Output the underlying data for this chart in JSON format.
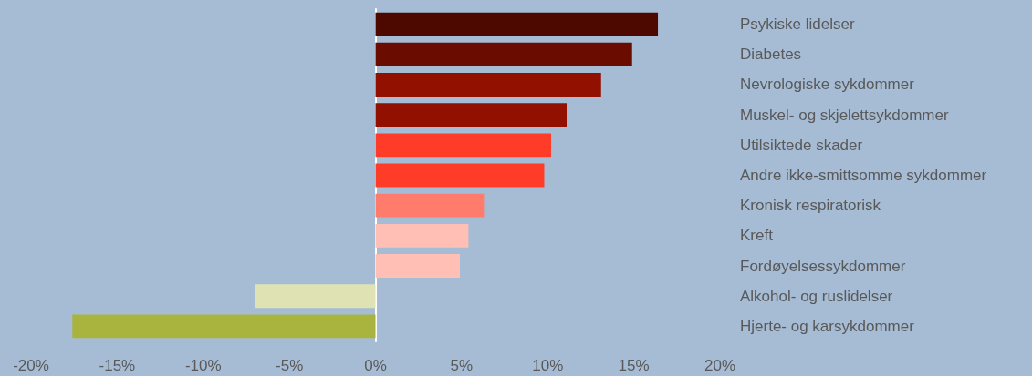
{
  "chart_data": {
    "type": "bar",
    "orientation": "horizontal",
    "categories": [
      "Psykiske lidelser",
      "Diabetes",
      "Nevrologiske sykdommer",
      "Muskel- og skjelettsykdommer",
      "Utilsiktede skader",
      "Andre ikke-smittsomme sykdommer",
      "Kronisk respiratorisk",
      "Kreft",
      "Fordøyelsessykdommer",
      "Alkohol- og ruslidelser",
      "Hjerte- og karsykdommer"
    ],
    "values": [
      16.4,
      14.9,
      13.1,
      11.1,
      10.2,
      9.8,
      6.3,
      5.4,
      4.9,
      -7.0,
      -17.6
    ],
    "colors": [
      "#4d0800",
      "#6b0c00",
      "#921000",
      "#921000",
      "#ff3c28",
      "#ff3c28",
      "#ff7b6b",
      "#ffbfb5",
      "#ffbfb5",
      "#dfe3b3",
      "#a8b43e"
    ],
    "xlim": [
      -20,
      20
    ],
    "xticks": [
      {
        "value": -20,
        "label": "-20%"
      },
      {
        "value": -15,
        "label": "-15%"
      },
      {
        "value": -10,
        "label": "-10%"
      },
      {
        "value": -5,
        "label": "-5%"
      },
      {
        "value": 0,
        "label": "0%"
      },
      {
        "value": 5,
        "label": "5%"
      },
      {
        "value": 10,
        "label": "10%"
      },
      {
        "value": 15,
        "label": "15%"
      },
      {
        "value": 20,
        "label": "20%"
      }
    ],
    "data_labels": false
  }
}
